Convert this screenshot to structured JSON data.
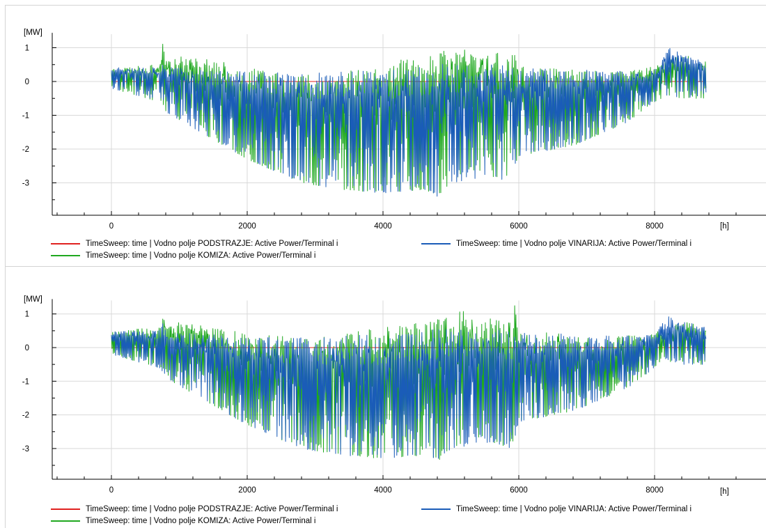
{
  "chart_data": [
    {
      "type": "line",
      "ylabel": "[MW]",
      "xlabel": "[h]",
      "xlim": [
        -900,
        9600
      ],
      "ylim": [
        -3.95,
        1.4
      ],
      "x_ticks": [
        0,
        2000,
        4000,
        6000,
        8000
      ],
      "y_ticks": [
        1,
        0,
        -1,
        -2,
        -3
      ],
      "grid": true,
      "legend": "bottom",
      "series": [
        {
          "name": "TimeSweep: time | Vodno polje PODSTRAZJE: Active Power/Terminal i",
          "color": "#e0211f",
          "envelope": {
            "x": [
              0,
              760,
              800,
              8000,
              8760
            ],
            "upper": [
              0,
              0,
              0,
              0,
              0
            ],
            "lower": [
              0,
              0,
              0,
              0,
              0
            ]
          }
        },
        {
          "name": "TimeSweep: time | Vodno polje KOMIZA: Active Power/Terminal i",
          "color": "#1fa81f",
          "envelope": {
            "x": [
              0,
              700,
              760,
              800,
              1400,
              2000,
              2800,
              3400,
              4000,
              4600,
              4800,
              5000,
              5200,
              5300,
              5600,
              5900,
              5930,
              6000,
              6800,
              7600,
              8000,
              8200,
              8400,
              8760
            ],
            "upper": [
              0.4,
              0.5,
              1.15,
              0.8,
              0.7,
              0.4,
              0.25,
              0.35,
              0.55,
              0.75,
              0.9,
              0.95,
              1.15,
              0.85,
              1.0,
              0.7,
              1.3,
              0.45,
              0.35,
              0.3,
              0.45,
              0.65,
              0.8,
              0.6
            ],
            "lower": [
              -0.2,
              -0.6,
              -0.8,
              -0.9,
              -1.6,
              -2.3,
              -3.0,
              -3.2,
              -3.3,
              -3.2,
              -3.4,
              -3.0,
              -2.8,
              -2.6,
              -2.8,
              -3.0,
              -2.5,
              -2.2,
              -1.9,
              -1.2,
              -0.6,
              -0.4,
              -0.5,
              -0.5
            ]
          }
        },
        {
          "name": "TimeSweep: time | Vodno polje VINARIJA: Active Power/Terminal i",
          "color": "#1a5cb8",
          "envelope": {
            "x": [
              0,
              700,
              760,
              800,
              1400,
              2000,
              2800,
              3400,
              4000,
              4600,
              4800,
              5000,
              5600,
              5900,
              6000,
              6800,
              7600,
              8000,
              8200,
              8400,
              8760
            ],
            "upper": [
              0.45,
              0.45,
              0.7,
              0.45,
              0.35,
              0.3,
              0.25,
              0.3,
              0.35,
              0.5,
              0.55,
              0.5,
              0.5,
              0.45,
              0.4,
              0.35,
              0.3,
              0.35,
              1.0,
              0.85,
              0.55
            ],
            "lower": [
              -0.2,
              -0.6,
              -0.8,
              -0.9,
              -1.6,
              -2.3,
              -3.0,
              -3.2,
              -3.3,
              -3.2,
              -3.4,
              -3.0,
              -2.8,
              -3.0,
              -2.2,
              -1.9,
              -1.2,
              -0.6,
              -0.4,
              -0.5,
              -0.5
            ]
          }
        }
      ]
    },
    {
      "type": "line",
      "ylabel": "[MW]",
      "xlabel": "[h]",
      "xlim": [
        -900,
        9600
      ],
      "ylim": [
        -3.95,
        1.4
      ],
      "x_ticks": [
        0,
        2000,
        4000,
        6000,
        8000
      ],
      "y_ticks": [
        1,
        0,
        -1,
        -2,
        -3
      ],
      "grid": true,
      "legend": "bottom",
      "series": [
        {
          "name": "TimeSweep: time | Vodno polje PODSTRAZJE: Active Power/Terminal i",
          "color": "#e0211f",
          "envelope": {
            "x": [
              0,
              760,
              800,
              8000,
              8760
            ],
            "upper": [
              0,
              0,
              0,
              0,
              0
            ],
            "lower": [
              0,
              0,
              0,
              0,
              0
            ]
          }
        },
        {
          "name": "TimeSweep: time | Vodno polje KOMIZA: Active Power/Terminal i",
          "color": "#1fa81f",
          "envelope": {
            "x": [
              0,
              700,
              760,
              800,
              1400,
              2000,
              2800,
              3400,
              4000,
              4600,
              4800,
              5000,
              5200,
              5300,
              5600,
              5900,
              5930,
              6000,
              6800,
              7600,
              8000,
              8200,
              8400,
              8760
            ],
            "upper": [
              0.5,
              0.6,
              1.2,
              0.8,
              0.7,
              0.45,
              0.3,
              0.4,
              0.6,
              0.8,
              0.95,
              1.0,
              1.15,
              0.85,
              1.0,
              0.75,
              1.4,
              0.5,
              0.4,
              0.35,
              0.45,
              0.6,
              0.8,
              0.6
            ],
            "lower": [
              -0.2,
              -0.6,
              -0.8,
              -0.9,
              -1.6,
              -2.3,
              -3.0,
              -3.2,
              -3.3,
              -3.2,
              -3.4,
              -3.0,
              -2.8,
              -2.6,
              -2.8,
              -3.0,
              -2.5,
              -2.2,
              -1.9,
              -1.2,
              -0.6,
              -0.4,
              -0.5,
              -0.5
            ]
          }
        },
        {
          "name": "TimeSweep: time | Vodno polje VINARIJA: Active Power/Terminal i",
          "color": "#1a5cb8",
          "envelope": {
            "x": [
              0,
              700,
              760,
              800,
              1400,
              2000,
              2800,
              3400,
              4000,
              4600,
              4800,
              5000,
              5600,
              5900,
              6000,
              6800,
              7600,
              8000,
              8200,
              8400,
              8760
            ],
            "upper": [
              0.5,
              0.5,
              0.8,
              0.5,
              0.4,
              0.3,
              0.3,
              0.35,
              0.4,
              0.55,
              0.6,
              0.55,
              0.55,
              0.5,
              0.45,
              0.4,
              0.35,
              0.4,
              0.95,
              0.8,
              0.6
            ],
            "lower": [
              -0.2,
              -0.6,
              -0.8,
              -0.9,
              -1.6,
              -2.3,
              -3.0,
              -3.2,
              -3.3,
              -3.2,
              -3.4,
              -3.0,
              -2.8,
              -3.0,
              -2.2,
              -1.9,
              -1.2,
              -0.6,
              -0.4,
              -0.5,
              -0.5
            ]
          }
        }
      ]
    }
  ]
}
